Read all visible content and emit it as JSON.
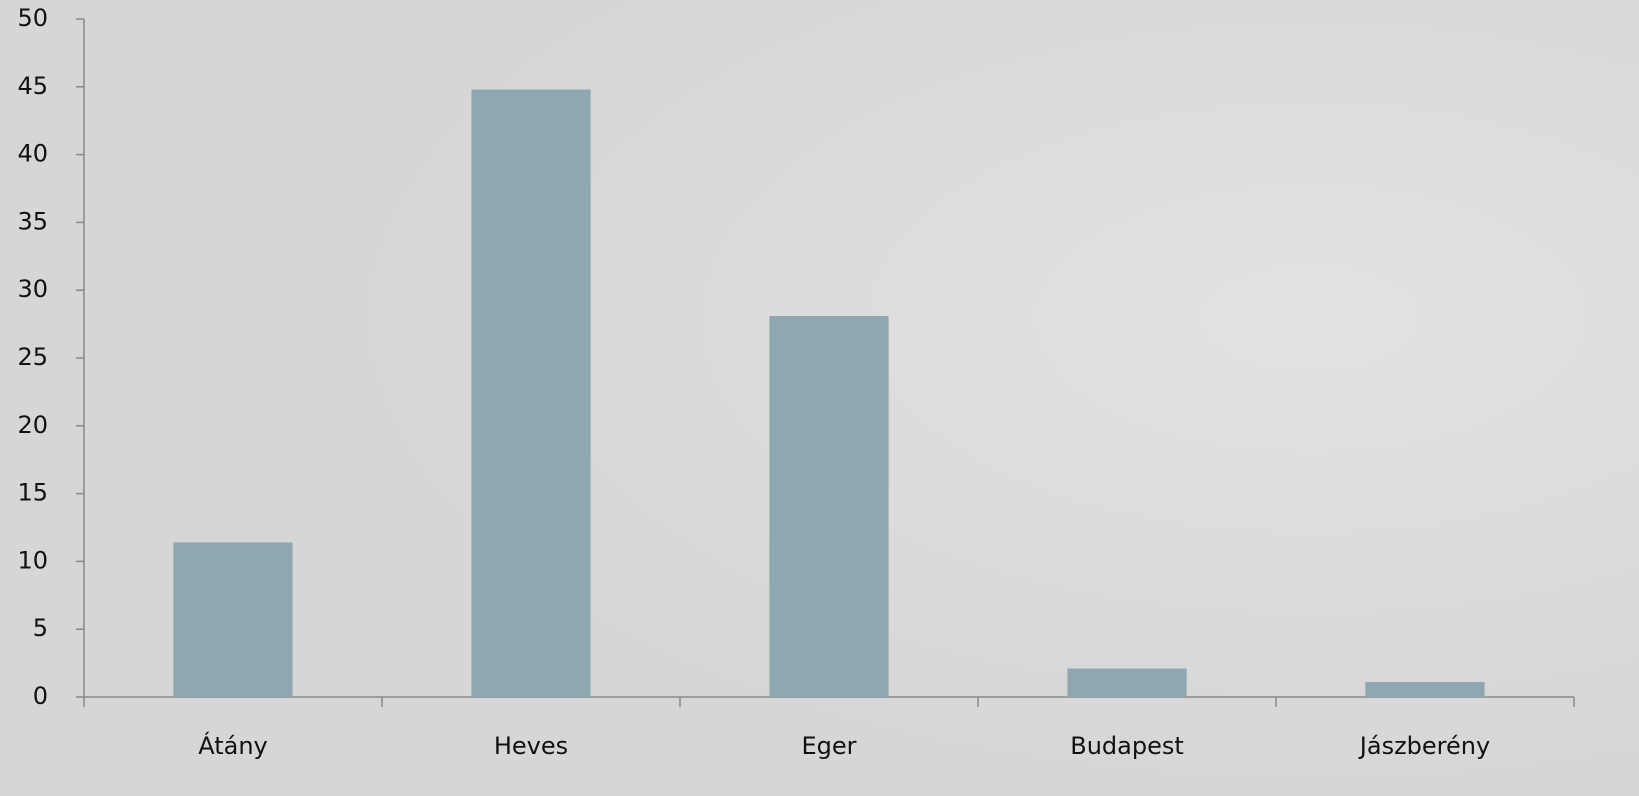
{
  "chart_data": {
    "type": "bar",
    "categories": [
      "Átány",
      "Heves",
      "Eger",
      "Budapest",
      "Jászberény"
    ],
    "values": [
      11.4,
      44.8,
      28.1,
      2.1,
      1.1
    ],
    "color": "#8ea7b1",
    "ylim": [
      0,
      50
    ],
    "yticks": [
      0,
      5,
      10,
      15,
      20,
      25,
      30,
      35,
      40,
      45,
      50
    ],
    "grid": false
  }
}
